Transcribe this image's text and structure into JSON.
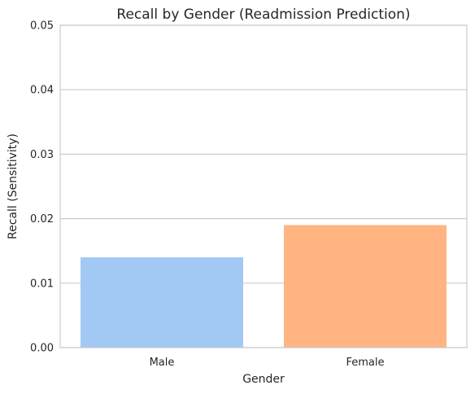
{
  "chart_data": {
    "type": "bar",
    "title": "Recall by Gender (Readmission Prediction)",
    "xlabel": "Gender",
    "ylabel": "Recall (Sensitivity)",
    "categories": [
      "Male",
      "Female"
    ],
    "values": [
      0.014,
      0.019
    ],
    "colors": [
      "#a1c9f4",
      "#ffb482"
    ],
    "ylim": [
      0,
      0.05
    ],
    "yticks": [
      "0.00",
      "0.01",
      "0.02",
      "0.03",
      "0.04",
      "0.05"
    ],
    "grid": true,
    "legend": false
  }
}
